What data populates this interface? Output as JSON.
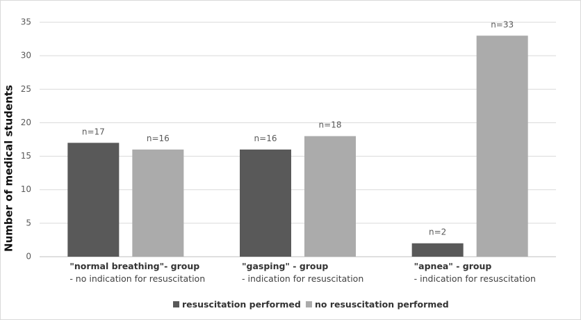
{
  "chart_data": {
    "type": "bar",
    "title": "",
    "xlabel": "",
    "ylabel": "Number of medical students",
    "ylim": [
      0,
      35
    ],
    "yticks": [
      0,
      5,
      10,
      15,
      20,
      25,
      30,
      35
    ],
    "grid": true,
    "legend_position": "bottom",
    "categories": [
      {
        "line1": "\"normal breathing\"- group",
        "line2": "- no indication for resuscitation"
      },
      {
        "line1": "\"gasping\" - group",
        "line2": "- indication for resuscitation"
      },
      {
        "line1": "\"apnea\" - group",
        "line2": "- indication for resuscitation"
      }
    ],
    "series": [
      {
        "name": "resuscitation performed",
        "color": "#595959",
        "values": [
          17,
          16,
          2
        ],
        "labels": [
          "n=17",
          "n=16",
          "n=2"
        ]
      },
      {
        "name": "no resuscitation performed",
        "color": "#ababab",
        "values": [
          16,
          18,
          33
        ],
        "labels": [
          "n=16",
          "n=18",
          "n=33"
        ]
      }
    ]
  }
}
